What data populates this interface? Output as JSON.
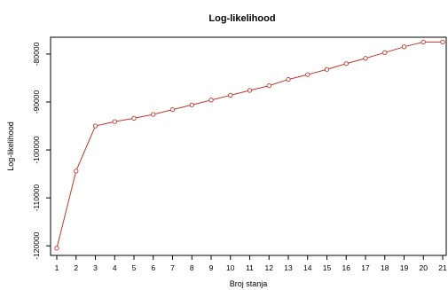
{
  "chart_data": {
    "type": "line",
    "title": "Log-likelihood",
    "xlabel": "Broj stanja",
    "ylabel": "Log-likelihood",
    "x": [
      1,
      2,
      3,
      4,
      5,
      6,
      7,
      8,
      9,
      10,
      11,
      12,
      13,
      14,
      15,
      16,
      17,
      18,
      19,
      20,
      21
    ],
    "series": [
      {
        "name": "",
        "values": [
          -120500,
          -104400,
          -95000,
          -94100,
          -93400,
          -92600,
          -91600,
          -90600,
          -89600,
          -88600,
          -87600,
          -86600,
          -85300,
          -84300,
          -83200,
          -82000,
          -80900,
          -79700,
          -78500,
          -77500,
          -77500
        ]
      }
    ],
    "xlim": [
      1,
      21
    ],
    "ylim": [
      -122000,
      -76500
    ],
    "yticks": [
      -80000,
      -90000,
      -100000,
      -110000,
      -120000
    ],
    "yticks_labels": [
      "-80000",
      "-90000",
      "-100000",
      "-110000",
      "-120000"
    ],
    "grid": false,
    "legend": "none",
    "colors": {
      "line": "#c0392b",
      "marker_fill": "#ffffff",
      "axis": "#000000"
    }
  }
}
